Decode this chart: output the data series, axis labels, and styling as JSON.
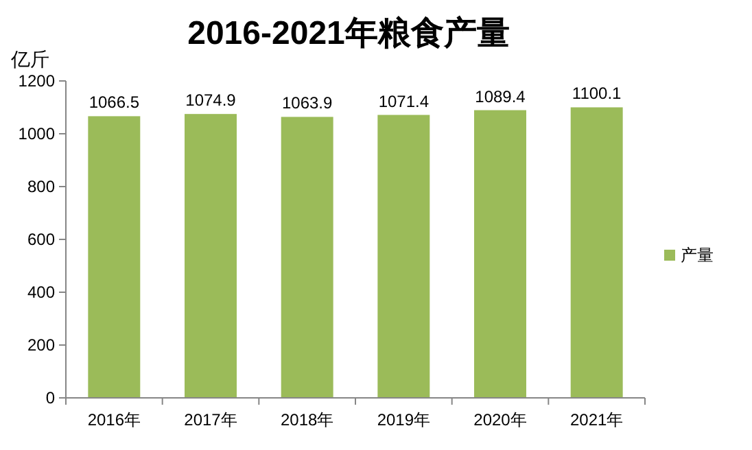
{
  "chart_data": {
    "type": "bar",
    "title": "2016-2021年粮食产量",
    "ylabel": "亿斤",
    "categories": [
      "2016年",
      "2017年",
      "2018年",
      "2019年",
      "2020年",
      "2021年"
    ],
    "series": [
      {
        "name": "产量",
        "color": "#9bbb59",
        "values": [
          1066.5,
          1074.9,
          1063.9,
          1071.4,
          1089.4,
          1100.1
        ]
      }
    ],
    "ylim": [
      0,
      1200
    ],
    "yticks": [
      0,
      200,
      400,
      600,
      800,
      1000,
      1200
    ],
    "data_labels": true,
    "legend": "right"
  }
}
